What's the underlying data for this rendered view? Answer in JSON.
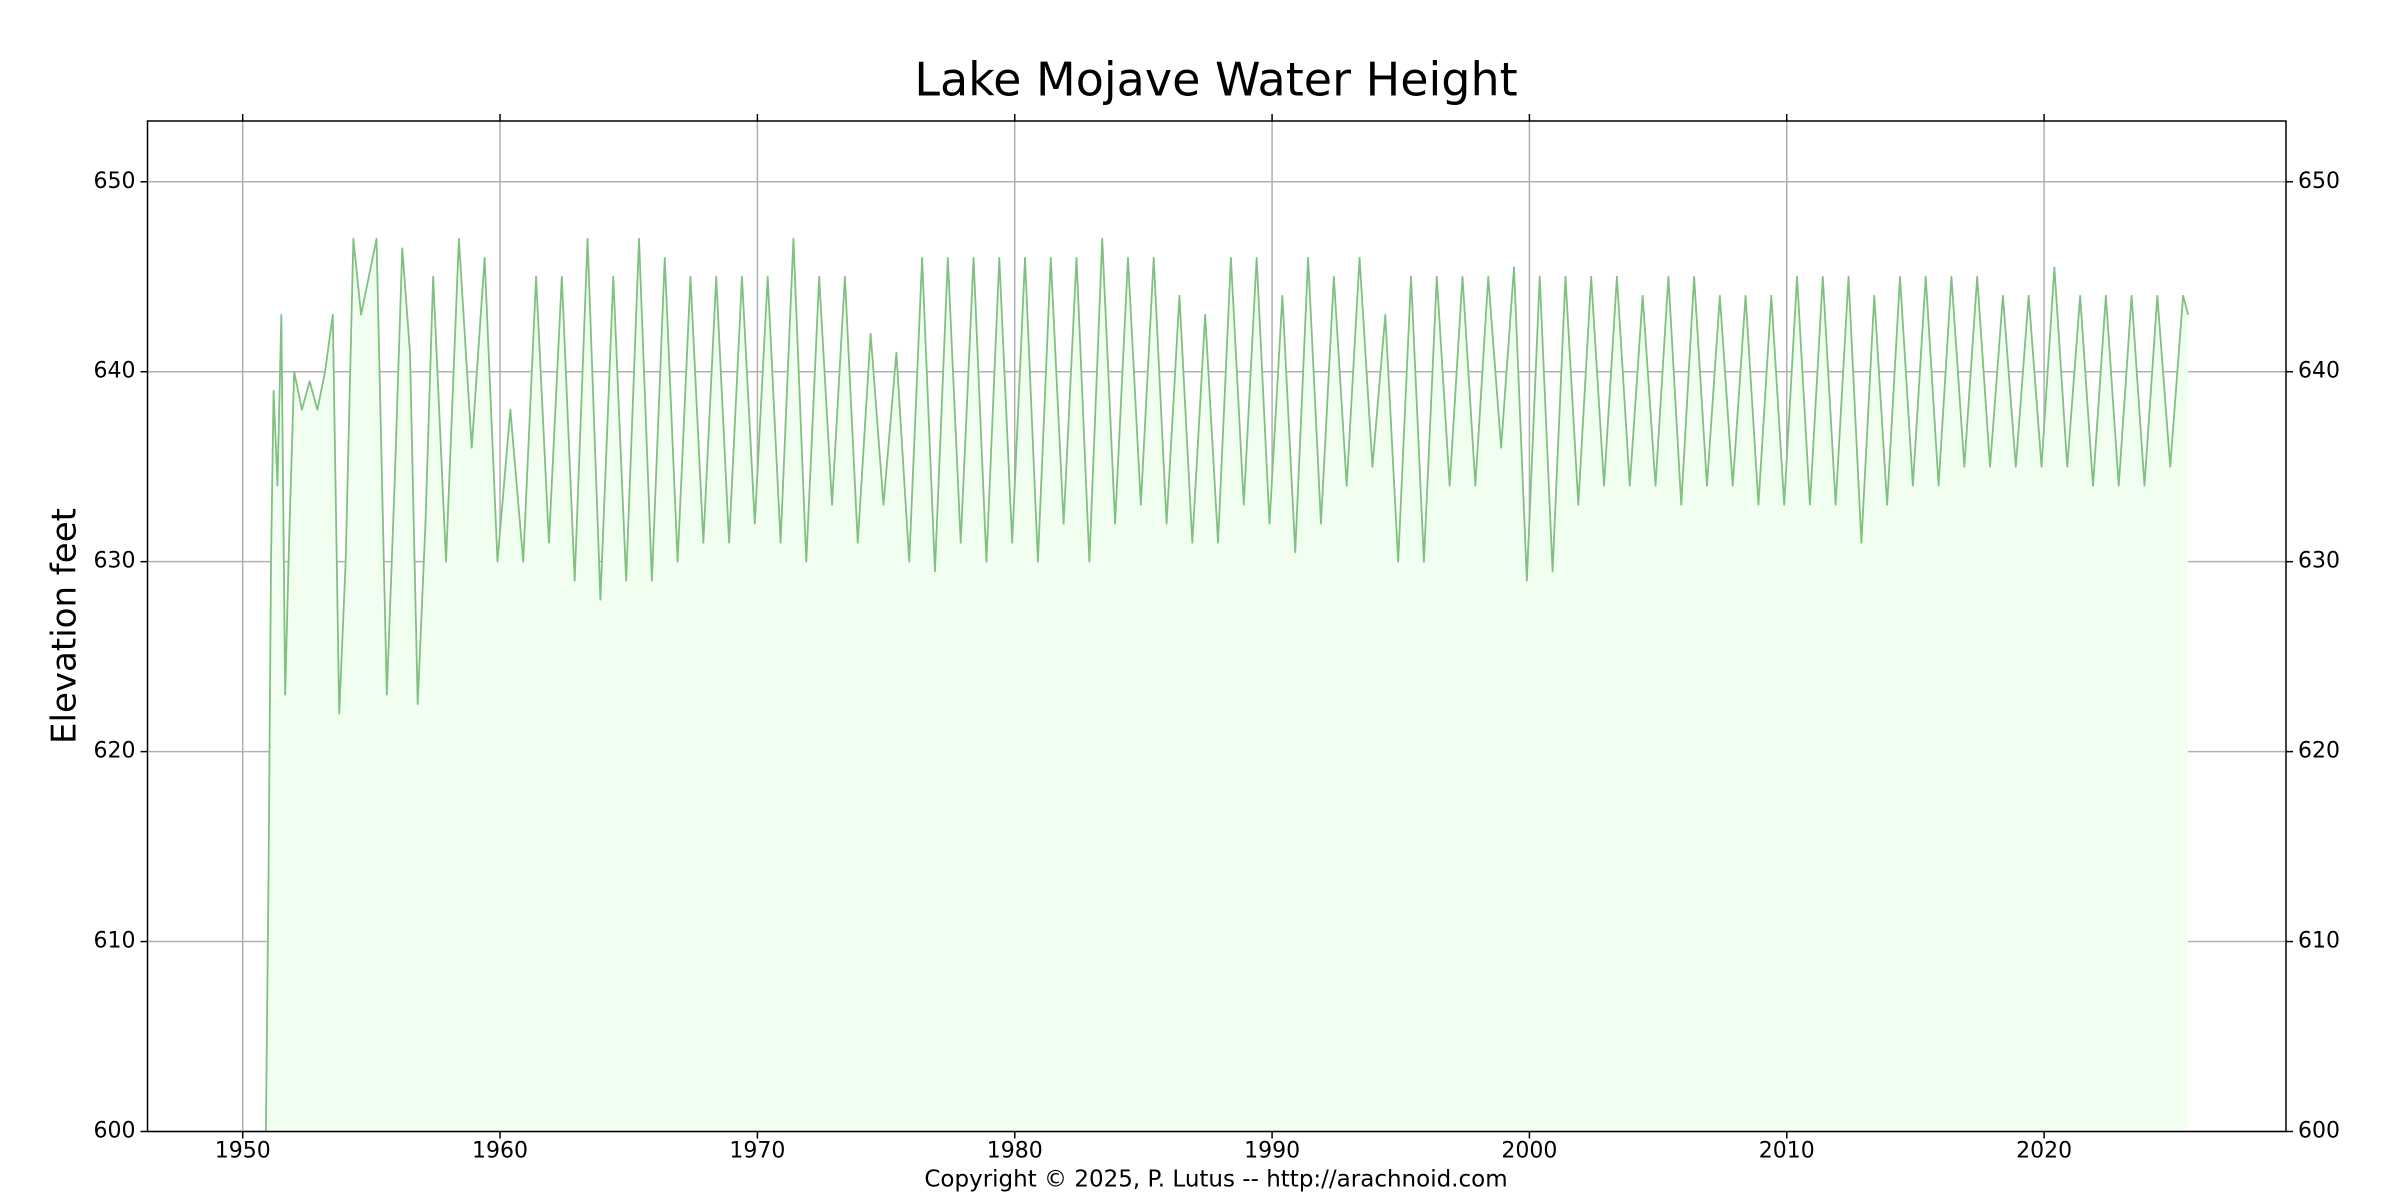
{
  "chart_data": {
    "type": "area",
    "title": "Lake Mojave Water Height",
    "y_label": "Elevation feet",
    "footer": "Copyright © 2025, P. Lutus -- http://arachnoid.com",
    "xlim": [
      1946.3,
      2029.4
    ],
    "xticks": [
      1950,
      1960,
      1970,
      1980,
      1990,
      2000,
      2010,
      2020
    ],
    "ylim": [
      600,
      653.2
    ],
    "yticks": [
      600,
      610,
      620,
      630,
      640,
      650
    ],
    "grid": true,
    "right_axis_labels": true,
    "line_color": "#80c080",
    "fill_color": "#f0fff0",
    "x": [
      1950.9,
      1951,
      1951.1,
      1951.2,
      1951.35,
      1951.5,
      1951.65,
      1951.8,
      1952,
      1952.3,
      1952.6,
      1952.9,
      1953.2,
      1953.5,
      1953.75,
      1954,
      1954.3,
      1954.6,
      1954.9,
      1955.2,
      1955.6,
      1955.9,
      1956.2,
      1956.5,
      1956.8,
      1957.1,
      1957.4,
      1957.9,
      1958.4,
      1958.9,
      1959.4,
      1959.9,
      1960.4,
      1960.9,
      1961.4,
      1961.9,
      1962.4,
      1962.9,
      1963.4,
      1963.9,
      1964.4,
      1964.9,
      1965.4,
      1965.9,
      1966.4,
      1966.9,
      1967.4,
      1967.9,
      1968.4,
      1968.9,
      1969.4,
      1969.9,
      1970.4,
      1970.9,
      1971.4,
      1971.9,
      1972.4,
      1972.9,
      1973.4,
      1973.9,
      1974.4,
      1974.9,
      1975.4,
      1975.9,
      1976.4,
      1976.9,
      1977.4,
      1977.9,
      1978.4,
      1978.9,
      1979.4,
      1979.9,
      1980.4,
      1980.9,
      1981.4,
      1981.9,
      1982.4,
      1982.9,
      1983.4,
      1983.9,
      1984.4,
      1984.9,
      1985.4,
      1985.9,
      1986.4,
      1986.9,
      1987.4,
      1987.9,
      1988.4,
      1988.9,
      1989.4,
      1989.9,
      1990.4,
      1990.9,
      1991.4,
      1991.9,
      1992.4,
      1992.9,
      1993.4,
      1993.9,
      1994.4,
      1994.9,
      1995.4,
      1995.9,
      1996.4,
      1996.9,
      1997.4,
      1997.9,
      1998.4,
      1998.9,
      1999.4,
      1999.9,
      2000.4,
      2000.9,
      2001.4,
      2001.9,
      2002.4,
      2002.9,
      2003.4,
      2003.9,
      2004.4,
      2004.9,
      2005.4,
      2005.9,
      2006.4,
      2006.9,
      2007.4,
      2007.9,
      2008.4,
      2008.9,
      2009.4,
      2009.9,
      2010.4,
      2010.9,
      2011.4,
      2011.9,
      2012.4,
      2012.9,
      2013.4,
      2013.9,
      2014.4,
      2014.9,
      2015.4,
      2015.9,
      2016.4,
      2016.9,
      2017.4,
      2017.9,
      2018.4,
      2018.9,
      2019.4,
      2019.9,
      2020.4,
      2020.9,
      2021.4,
      2021.9,
      2022.4,
      2022.9,
      2023.4,
      2023.9,
      2024.4,
      2024.9,
      2025.4,
      2025.6
    ],
    "values": [
      600,
      613,
      630,
      639,
      634,
      643,
      623,
      631,
      640,
      638,
      639.5,
      638,
      640,
      643,
      622,
      630,
      647,
      643,
      645,
      647,
      623,
      634,
      646.5,
      641,
      622.5,
      632,
      645,
      630,
      647,
      636,
      646,
      630,
      638,
      630,
      645,
      631,
      645,
      629,
      647,
      628,
      645,
      629,
      647,
      629,
      646,
      630,
      645,
      631,
      645,
      631,
      645,
      632,
      645,
      631,
      647,
      630,
      645,
      633,
      645,
      631,
      642,
      633,
      641,
      630,
      646,
      629.5,
      646,
      631,
      646,
      630,
      646,
      631,
      646,
      630,
      646,
      632,
      646,
      630,
      647,
      632,
      646,
      633,
      646,
      632,
      644,
      631,
      643,
      631,
      646,
      633,
      646,
      632,
      644,
      630.5,
      646,
      632,
      645,
      634,
      646,
      635,
      643,
      630,
      645,
      630,
      645,
      634,
      645,
      634,
      645,
      636,
      645.5,
      629,
      645,
      629.5,
      645,
      633,
      645,
      634,
      645,
      634,
      644,
      634,
      645,
      633,
      645,
      634,
      644,
      634,
      644,
      633,
      644,
      633,
      645,
      633,
      645,
      633,
      645,
      631,
      644,
      633,
      645,
      634,
      645,
      634,
      645,
      635,
      645,
      635,
      644,
      635,
      644,
      635,
      645.5,
      635,
      644,
      634,
      644,
      634,
      644,
      634,
      644,
      635,
      644,
      643
    ]
  }
}
